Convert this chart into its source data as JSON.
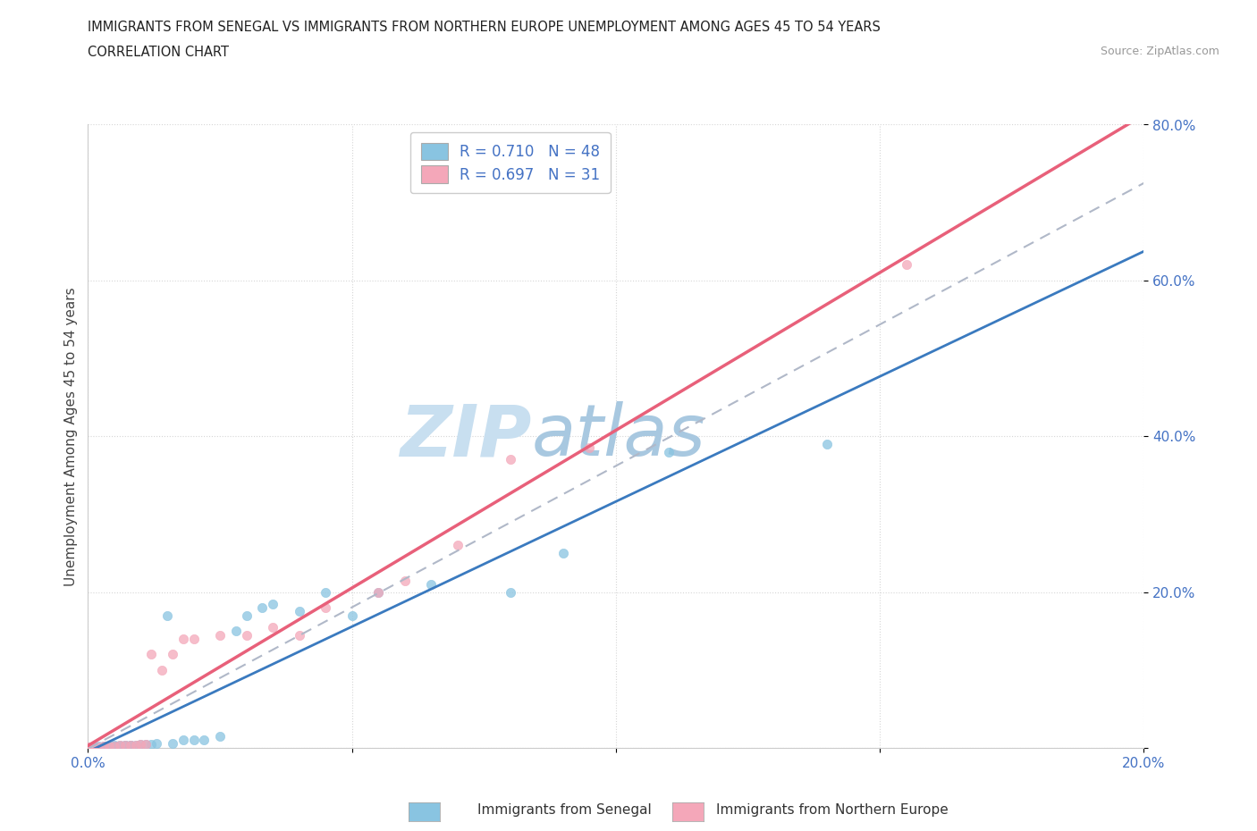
{
  "title_line1": "IMMIGRANTS FROM SENEGAL VS IMMIGRANTS FROM NORTHERN EUROPE UNEMPLOYMENT AMONG AGES 45 TO 54 YEARS",
  "title_line2": "CORRELATION CHART",
  "source": "Source: ZipAtlas.com",
  "ylabel": "Unemployment Among Ages 45 to 54 years",
  "xlim": [
    0.0,
    0.2
  ],
  "ylim": [
    0.0,
    0.8
  ],
  "xticks": [
    0.0,
    0.05,
    0.1,
    0.15,
    0.2
  ],
  "yticks": [
    0.0,
    0.2,
    0.4,
    0.6,
    0.8
  ],
  "senegal_R": 0.71,
  "senegal_N": 48,
  "northern_R": 0.697,
  "northern_N": 31,
  "senegal_color": "#89c4e1",
  "northern_color": "#f4a7b9",
  "senegal_line_color": "#3a7abf",
  "northern_line_color": "#e8607a",
  "tick_color": "#4472c4",
  "watermark_color": "#d0eaf5",
  "senegal_x": [
    0.0,
    0.0,
    0.0,
    0.0,
    0.0,
    0.0,
    0.001,
    0.001,
    0.002,
    0.002,
    0.003,
    0.003,
    0.003,
    0.004,
    0.004,
    0.005,
    0.005,
    0.005,
    0.006,
    0.006,
    0.007,
    0.007,
    0.008,
    0.008,
    0.009,
    0.01,
    0.011,
    0.012,
    0.013,
    0.015,
    0.016,
    0.018,
    0.02,
    0.022,
    0.025,
    0.028,
    0.03,
    0.033,
    0.035,
    0.04,
    0.045,
    0.05,
    0.055,
    0.065,
    0.08,
    0.09,
    0.11,
    0.14
  ],
  "senegal_y": [
    0.0,
    0.0,
    0.0,
    0.0,
    0.001,
    0.001,
    0.0,
    0.001,
    0.0,
    0.002,
    0.001,
    0.002,
    0.002,
    0.001,
    0.002,
    0.002,
    0.002,
    0.003,
    0.003,
    0.002,
    0.003,
    0.004,
    0.003,
    0.004,
    0.004,
    0.005,
    0.005,
    0.005,
    0.006,
    0.17,
    0.006,
    0.01,
    0.01,
    0.01,
    0.015,
    0.15,
    0.17,
    0.18,
    0.185,
    0.175,
    0.2,
    0.17,
    0.2,
    0.21,
    0.2,
    0.25,
    0.38,
    0.39
  ],
  "northern_x": [
    0.0,
    0.0,
    0.0,
    0.0,
    0.001,
    0.002,
    0.003,
    0.004,
    0.005,
    0.006,
    0.007,
    0.008,
    0.009,
    0.01,
    0.011,
    0.012,
    0.014,
    0.016,
    0.018,
    0.02,
    0.025,
    0.03,
    0.035,
    0.04,
    0.045,
    0.055,
    0.06,
    0.07,
    0.08,
    0.095,
    0.155
  ],
  "northern_y": [
    0.0,
    0.0,
    0.001,
    0.001,
    0.001,
    0.001,
    0.002,
    0.002,
    0.002,
    0.003,
    0.003,
    0.004,
    0.004,
    0.005,
    0.005,
    0.12,
    0.1,
    0.12,
    0.14,
    0.14,
    0.145,
    0.145,
    0.155,
    0.145,
    0.18,
    0.2,
    0.215,
    0.26,
    0.37,
    0.385,
    0.62
  ]
}
